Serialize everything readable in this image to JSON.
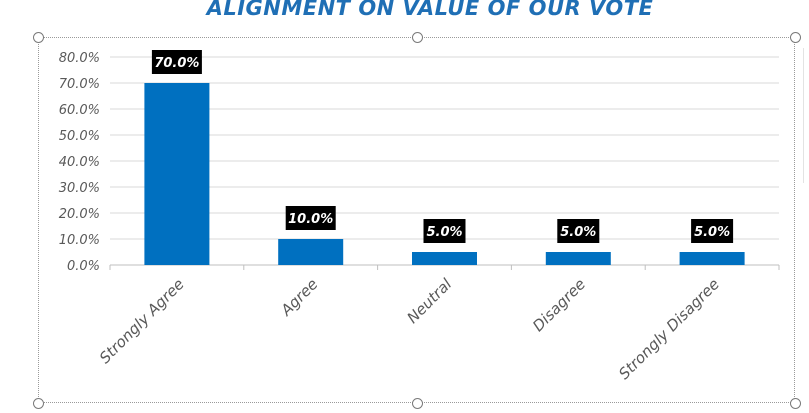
{
  "chart_data": {
    "type": "bar",
    "title": "ALIGNMENT ON VALUE OF OUR VOTE",
    "categories": [
      "Strongly Agree",
      "Agree",
      "Neutral",
      "Disagree",
      "Strongly Disagree"
    ],
    "values": [
      70.0,
      10.0,
      5.0,
      5.0,
      5.0
    ],
    "data_labels": [
      "70.0%",
      "10.0%",
      "5.0%",
      "5.0%",
      "5.0%"
    ],
    "ylim": [
      0,
      80
    ],
    "yticks": [
      "0.0%",
      "10.0%",
      "20.0%",
      "30.0%",
      "40.0%",
      "50.0%",
      "60.0%",
      "70.0%",
      "80.0%"
    ],
    "grid": true,
    "bar_color": "#0070c0",
    "label_background": "#000000",
    "label_color": "#ffffff"
  }
}
